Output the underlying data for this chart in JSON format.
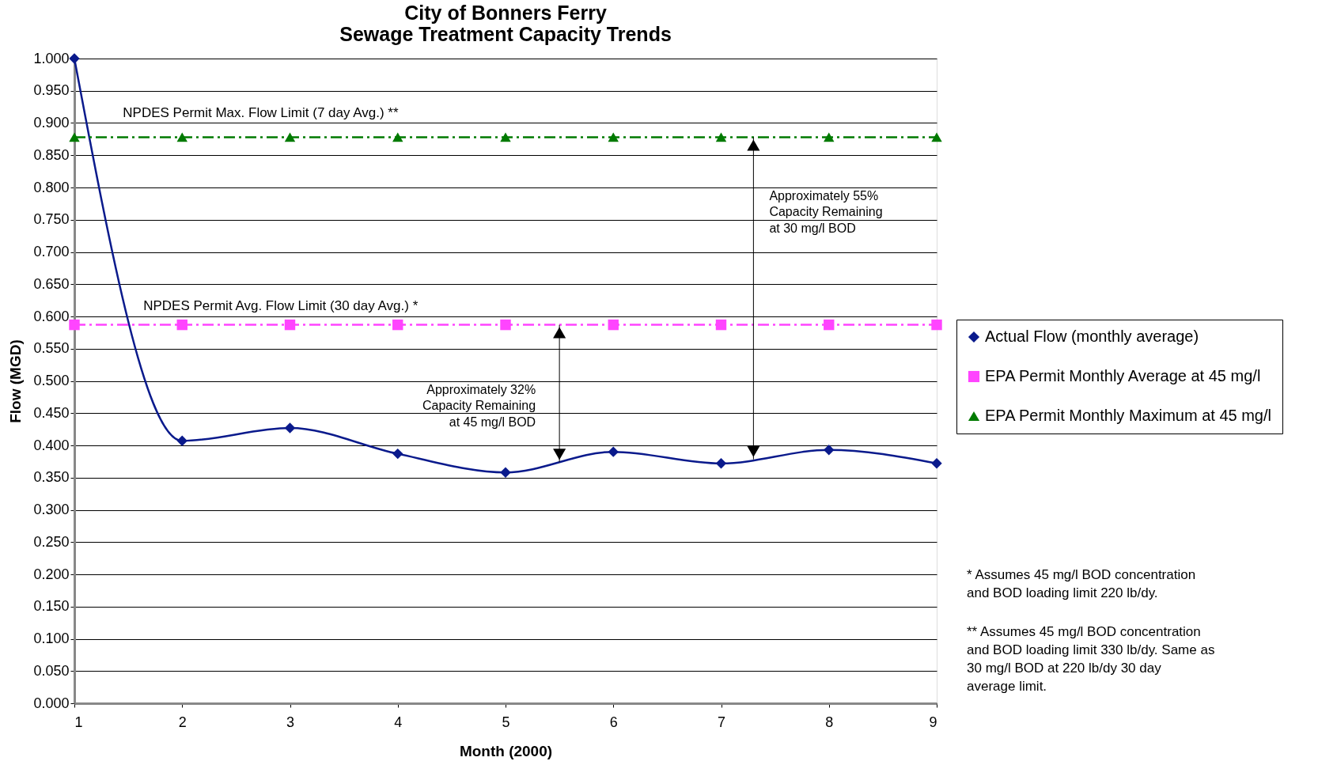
{
  "chart_data": {
    "type": "line",
    "title": "City of Bonners Ferry\nSewage Treatment Capacity Trends",
    "xlabel": "Month (2000)",
    "ylabel": "Flow (MGD)",
    "x": [
      1,
      2,
      3,
      4,
      5,
      6,
      7,
      8,
      9
    ],
    "series": [
      {
        "name": "Actual Flow (monthly average)",
        "color": "#0a1a8c",
        "marker": "diamond",
        "line_style": "solid",
        "values": [
          1.0,
          0.407,
          0.427,
          0.387,
          0.358,
          0.39,
          0.372,
          0.393,
          0.372
        ]
      },
      {
        "name": "EPA Permit Monthly Average at 45 mg/l",
        "color": "#ff44ff",
        "marker": "square",
        "line_style": "dashed",
        "values": [
          0.587,
          0.587,
          0.587,
          0.587,
          0.587,
          0.587,
          0.587,
          0.587,
          0.587
        ]
      },
      {
        "name": "EPA Permit Monthly Maximum at 45 mg/l",
        "color": "#007a00",
        "marker": "triangle",
        "line_style": "dashed",
        "values": [
          0.878,
          0.878,
          0.878,
          0.878,
          0.878,
          0.878,
          0.878,
          0.878,
          0.878
        ]
      }
    ],
    "xlim": [
      1,
      9
    ],
    "xticks": [
      1,
      2,
      3,
      4,
      5,
      6,
      7,
      8,
      9
    ],
    "ylim": [
      0,
      1
    ],
    "yticks": [
      {
        "value": 0,
        "label": "0.000"
      },
      {
        "value": 0.05,
        "label": "0.050"
      },
      {
        "value": 0.1,
        "label": "0.100"
      },
      {
        "value": 0.15,
        "label": "0.150"
      },
      {
        "value": 0.2,
        "label": "0.200"
      },
      {
        "value": 0.25,
        "label": "0.250"
      },
      {
        "value": 0.3,
        "label": "0.300"
      },
      {
        "value": 0.35,
        "label": "0.350"
      },
      {
        "value": 0.4,
        "label": "0.400"
      },
      {
        "value": 0.45,
        "label": "0.450"
      },
      {
        "value": 0.5,
        "label": "0.500"
      },
      {
        "value": 0.55,
        "label": "0.550"
      },
      {
        "value": 0.6,
        "label": "0.600"
      },
      {
        "value": 0.65,
        "label": "0.650"
      },
      {
        "value": 0.7,
        "label": "0.700"
      },
      {
        "value": 0.75,
        "label": "0.750"
      },
      {
        "value": 0.8,
        "label": "0.800"
      },
      {
        "value": 0.85,
        "label": "0.850"
      },
      {
        "value": 0.9,
        "label": "0.900"
      },
      {
        "value": 0.95,
        "label": "0.950"
      },
      {
        "value": 1.0,
        "label": "1.000"
      }
    ],
    "grid": "y",
    "legend": "right",
    "annotations": [
      {
        "text": "NPDES Permit Max. Flow Limit (7 day Avg.) **",
        "x": 1.45,
        "y": 0.878
      },
      {
        "text": "NPDES Permit Avg. Flow Limit (30 day Avg.) *",
        "x": 1.64,
        "y": 0.587
      },
      "Approximately 32%\nCapacity Remaining\nat 45 mg/l BOD",
      "Approximately 55%\nCapacity Remaining\nat 30 mg/l BOD",
      "* Assumes 45 mg/l BOD concentration\nand BOD loading limit 220 lb/dy.",
      "** Assumes 45 mg/l BOD concentration\nand BOD loading limit 330 lb/dy.  Same as\n30 mg/l BOD at 220 lb/dy 30 day\naverage limit."
    ]
  }
}
